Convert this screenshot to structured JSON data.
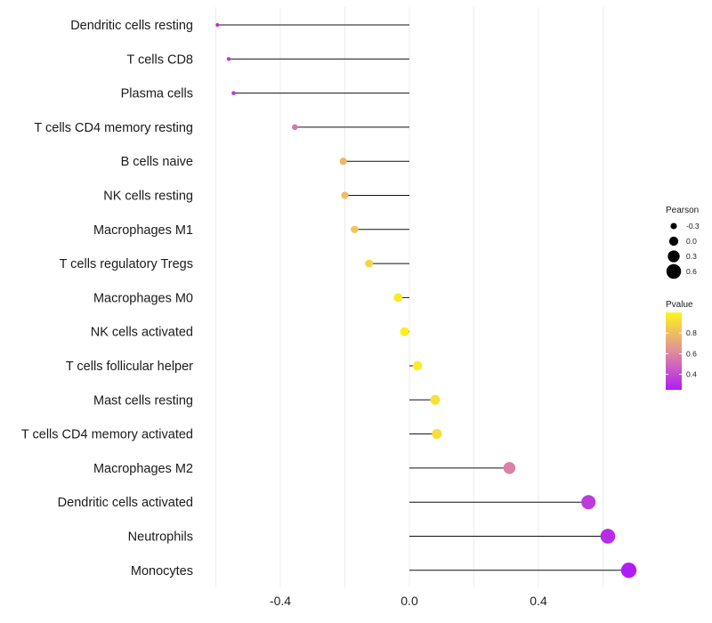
{
  "chart_data": {
    "type": "lollipop",
    "title": "",
    "xlabel": "",
    "ylabel": "",
    "xlim": [
      -0.6,
      0.72
    ],
    "xticks": [
      -0.4,
      0.0,
      0.4
    ],
    "xtick_labels": [
      "-0.4",
      "0.0",
      "0.4"
    ],
    "grid": true,
    "categories": [
      "Dendritic cells resting",
      "T cells CD8",
      "Plasma cells",
      "T cells CD4 memory resting",
      "B cells naive",
      "NK cells resting",
      "Macrophages M1",
      "T cells regulatory  Tregs ",
      "Macrophages M0",
      "NK cells activated",
      "T cells follicular helper",
      "Mast cells resting",
      "T cells CD4 memory activated",
      "Macrophages M2",
      "Dendritic cells activated",
      "Neutrophils",
      "Monocytes"
    ],
    "pearson": [
      -0.595,
      -0.56,
      -0.545,
      -0.355,
      -0.205,
      -0.2,
      -0.17,
      -0.125,
      -0.035,
      -0.015,
      0.025,
      0.08,
      0.085,
      0.31,
      0.555,
      0.615,
      0.68
    ],
    "pvalue": [
      0.3,
      0.33,
      0.33,
      0.55,
      0.78,
      0.8,
      0.83,
      0.88,
      0.97,
      0.99,
      0.97,
      0.93,
      0.92,
      0.58,
      0.35,
      0.3,
      0.25
    ],
    "legend": {
      "size_title": "Pearson",
      "size_values": [
        -0.3,
        0.0,
        0.3,
        0.6
      ],
      "size_labels": [
        "-0.3",
        "0.0",
        "0.3",
        "0.6"
      ],
      "color_title": "Pvalue",
      "color_ticks": [
        0.8,
        0.6,
        0.4
      ],
      "color_tick_labels": [
        "0.8",
        "0.6",
        "0.4"
      ],
      "color_range": [
        0.25,
        1.0
      ],
      "color_low": "#b11cf5",
      "color_mid": "#df8f9c",
      "color_high": "#fff31d",
      "placement": "right"
    }
  }
}
